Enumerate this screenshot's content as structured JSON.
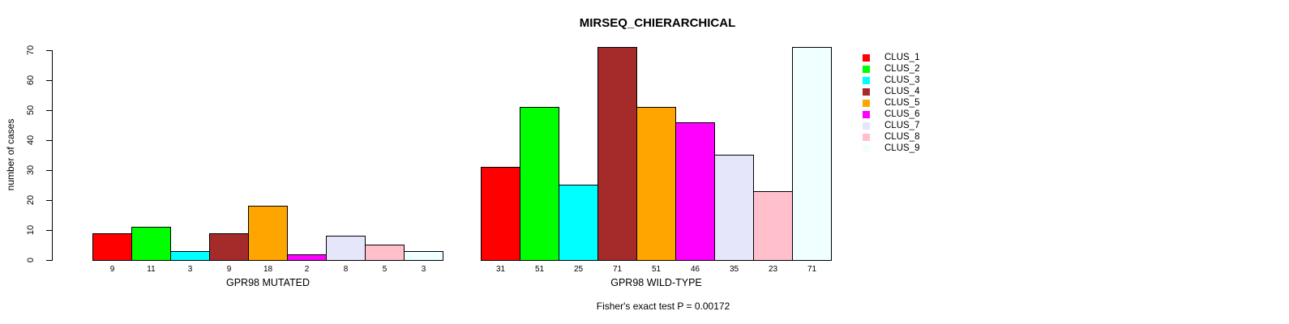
{
  "chart_data": {
    "type": "bar",
    "title": "MIRSEQ_CHIERARCHICAL",
    "ylabel": "number of cases",
    "ylim": [
      0,
      70
    ],
    "yticks": [
      0,
      10,
      20,
      30,
      40,
      50,
      60,
      70
    ],
    "grid": false,
    "legend_position": "right-outside",
    "bar_value_labels_shown": true,
    "clusters": [
      {
        "name": "CLUS_1",
        "color": "#FF0000"
      },
      {
        "name": "CLUS_2",
        "color": "#00FF00"
      },
      {
        "name": "CLUS_3",
        "color": "#00FFFF"
      },
      {
        "name": "CLUS_4",
        "color": "#A52A2A"
      },
      {
        "name": "CLUS_5",
        "color": "#FFA500"
      },
      {
        "name": "CLUS_6",
        "color": "#FF00FF"
      },
      {
        "name": "CLUS_7",
        "color": "#E6E6FA"
      },
      {
        "name": "CLUS_8",
        "color": "#FFC0CB"
      },
      {
        "name": "CLUS_9",
        "color": "#F0FFFF"
      }
    ],
    "groups": [
      {
        "label": "GPR98 MUTATED",
        "values": [
          9,
          11,
          3,
          9,
          18,
          2,
          8,
          5,
          3
        ]
      },
      {
        "label": "GPR98 WILD-TYPE",
        "values": [
          31,
          51,
          25,
          71,
          51,
          46,
          35,
          23,
          71
        ]
      }
    ],
    "footnote": "Fisher's exact test P = 0.00172"
  }
}
